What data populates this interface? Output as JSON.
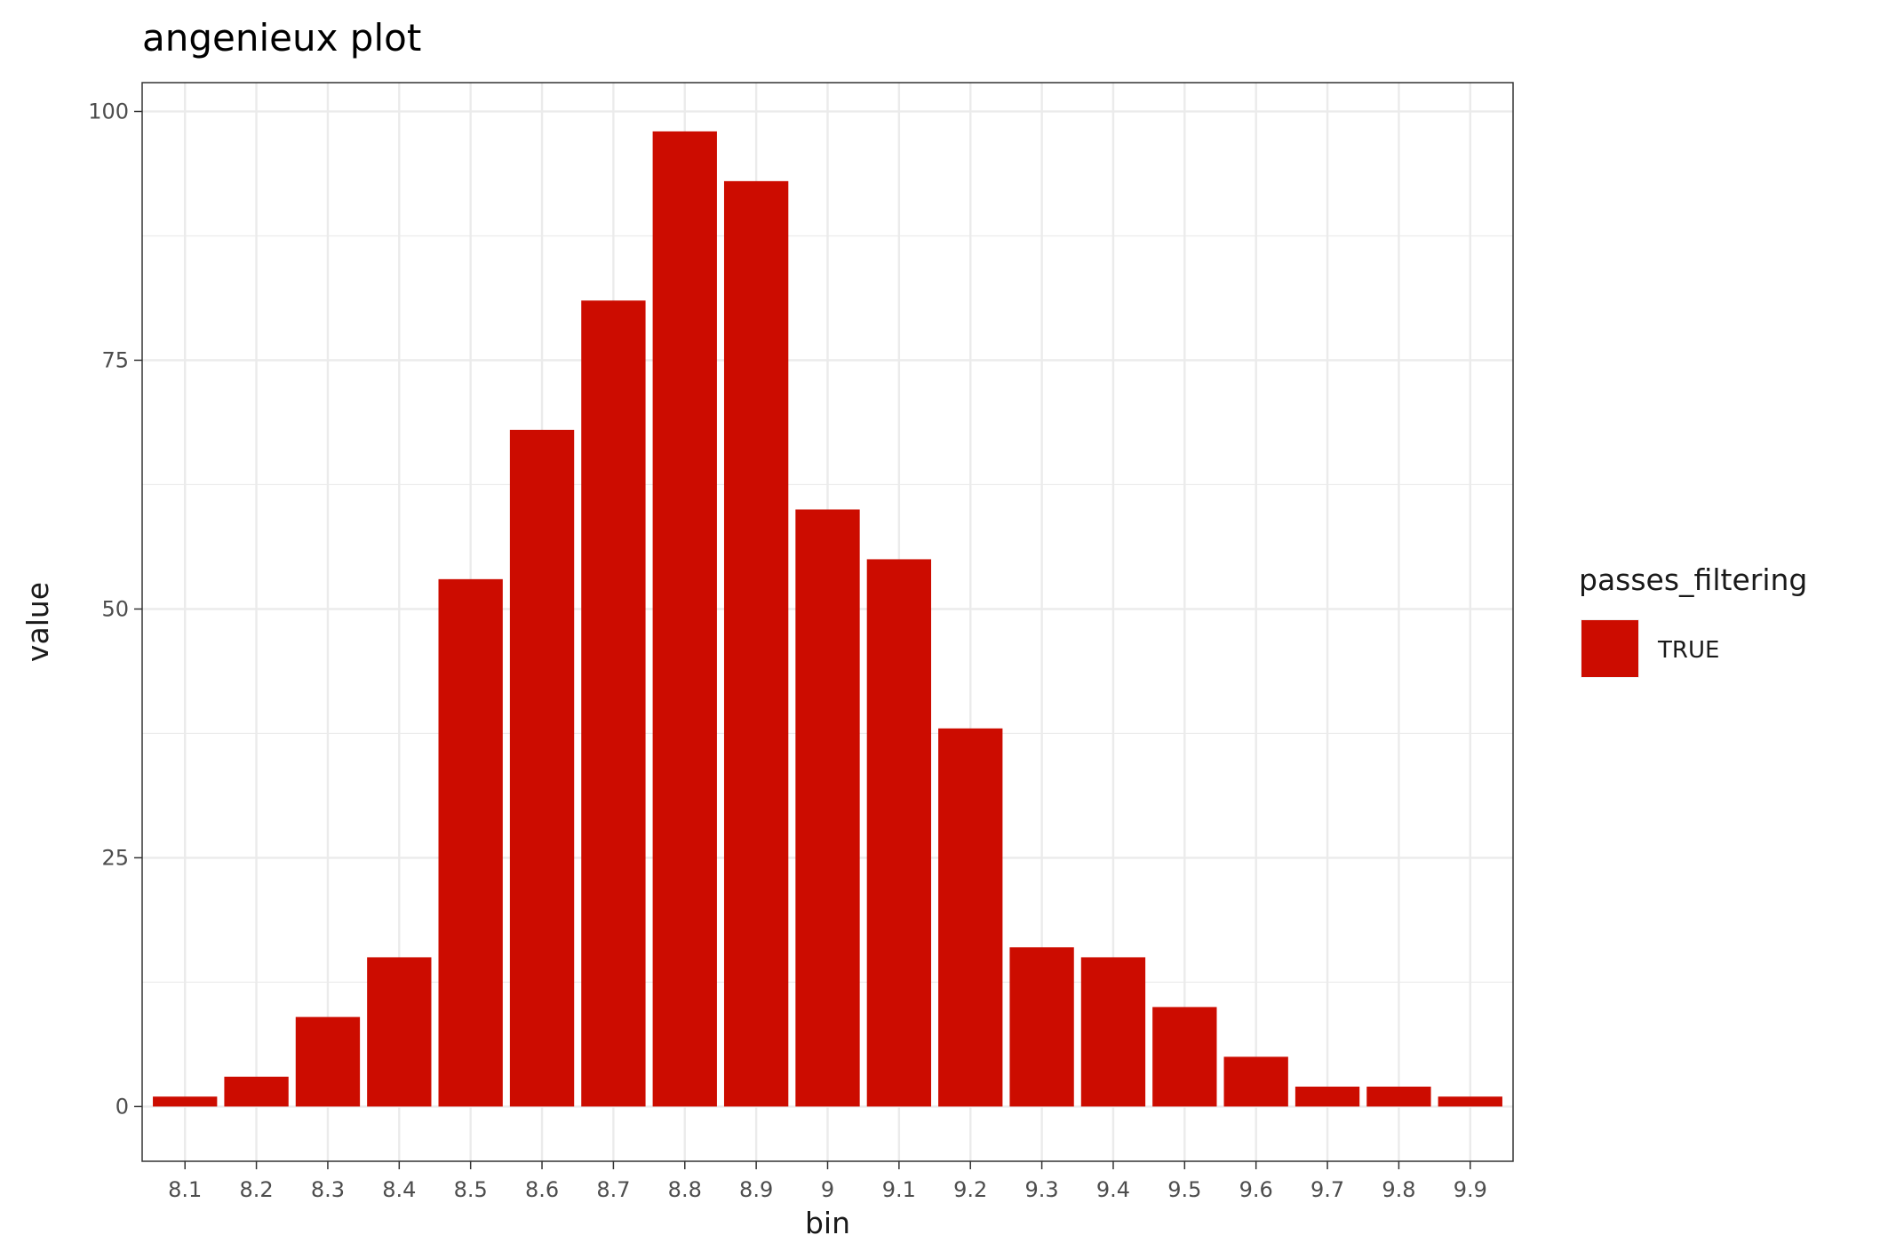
{
  "chart_data": {
    "type": "bar",
    "title": "angenieux plot",
    "xlabel": "bin",
    "ylabel": "value",
    "categories": [
      "8.1",
      "8.2",
      "8.3",
      "8.4",
      "8.5",
      "8.6",
      "8.7",
      "8.8",
      "8.9",
      "9",
      "9.1",
      "9.2",
      "9.3",
      "9.4",
      "9.5",
      "9.6",
      "9.7",
      "9.8",
      "9.9"
    ],
    "series": [
      {
        "name": "TRUE",
        "color": "#cc0c00",
        "values": [
          1,
          3,
          9,
          15,
          53,
          68,
          81,
          98,
          93,
          60,
          55,
          38,
          16,
          15,
          10,
          5,
          2,
          2,
          1
        ]
      }
    ],
    "ylim": [
      -5.5,
      102.9
    ],
    "yticks": [
      0,
      25,
      50,
      75,
      100
    ],
    "grid": true,
    "legend": {
      "title": "passes_filtering",
      "position": "right",
      "entries": [
        {
          "label": "TRUE",
          "color": "#cc0c00"
        }
      ]
    }
  }
}
